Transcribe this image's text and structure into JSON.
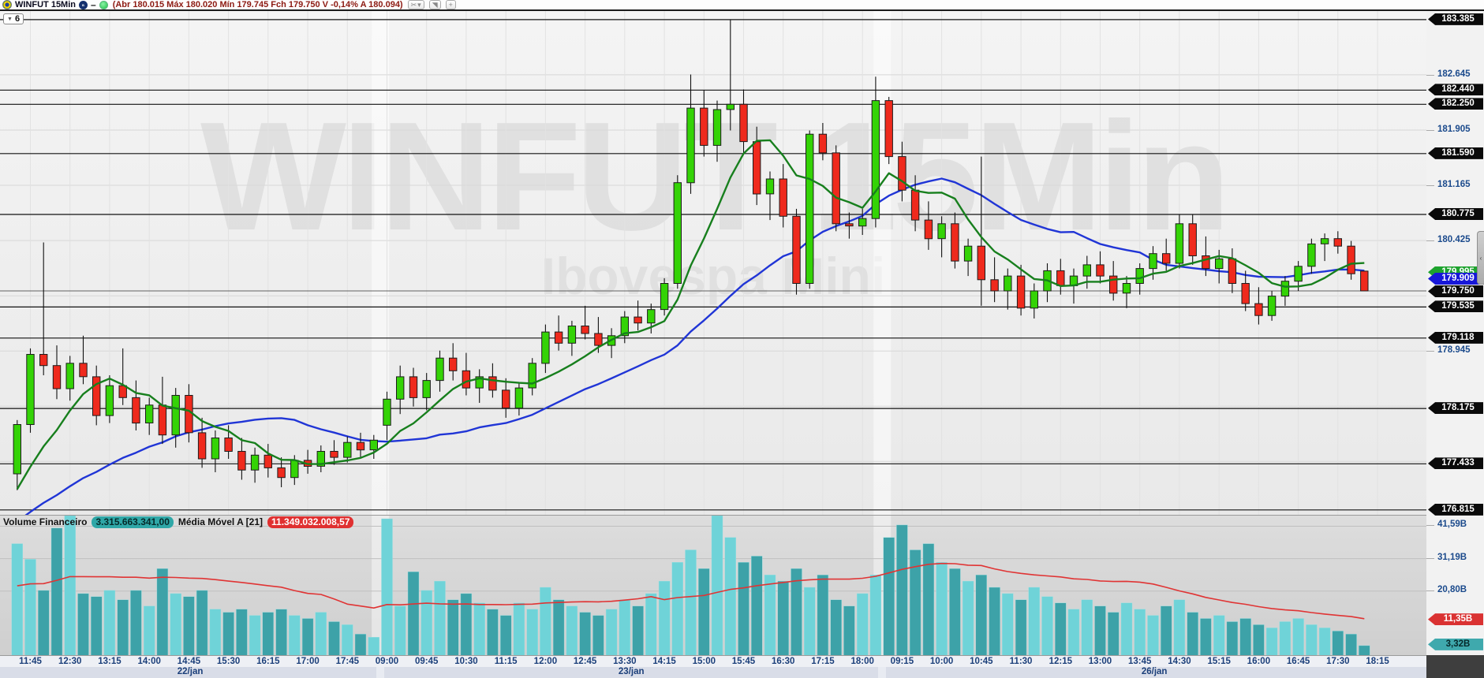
{
  "titlebar": {
    "symbol": "WINFUT 15Min",
    "ohlc": "(Abr 180.015 Máx 180.020 Mín 179.745 Fch 179.750 V -0,14% A 180.094)",
    "buttons": {
      "tools": "✂",
      "tools_caret": "▾",
      "cursor": "◥",
      "zoom_in": "+"
    },
    "minus": "–"
  },
  "tab_selector": {
    "caret": "▼",
    "label": "6"
  },
  "watermark": {
    "line1": "WINFUT 15Min",
    "line2": "Ibovespa Mini"
  },
  "volume_header": {
    "name": "Volume Financeiro",
    "value": "3.315.663.341,00",
    "ma_name": "Média Móvel A [21]",
    "ma_value": "11.349.032.008,57"
  },
  "panel_toggle": "‹",
  "price_axis": {
    "ticks": [
      {
        "label": "182.645",
        "price": 182.645
      },
      {
        "label": "181.905",
        "price": 181.905
      },
      {
        "label": "181.165",
        "price": 181.165
      },
      {
        "label": "180.425",
        "price": 180.425
      },
      {
        "label": "178.945",
        "price": 178.945
      }
    ],
    "levels": [
      {
        "label": "183.385",
        "price": 183.385
      },
      {
        "label": "182.440",
        "price": 182.44
      },
      {
        "label": "182.250",
        "price": 182.25
      },
      {
        "label": "181.590",
        "price": 181.59
      },
      {
        "label": "180.775",
        "price": 180.775
      },
      {
        "label": "179.535",
        "price": 179.535
      },
      {
        "label": "179.118",
        "price": 179.118
      },
      {
        "label": "178.175",
        "price": 178.175
      },
      {
        "label": "177.433",
        "price": 177.433
      },
      {
        "label": "176.815",
        "price": 176.815
      }
    ],
    "ma_fast_tag": {
      "label": "179.995",
      "price": 179.995
    },
    "ma_slow_tag": {
      "label": "179.909",
      "price": 179.909
    },
    "last_tag": {
      "label": "179.750",
      "price": 179.75
    }
  },
  "volume_axis": {
    "ticks": [
      {
        "label": "41,59B",
        "value": 41.59
      },
      {
        "label": "31,19B",
        "value": 31.19
      },
      {
        "label": "20,80B",
        "value": 20.8
      }
    ],
    "ma_tag": {
      "label": "11,35B",
      "value": 11.35
    },
    "last_tag": {
      "label": "3,32B",
      "value": 3.32
    }
  },
  "time_axis": {
    "ticks": [
      {
        "i": 1,
        "label": "11:45"
      },
      {
        "i": 4,
        "label": "12:30"
      },
      {
        "i": 7,
        "label": "13:15"
      },
      {
        "i": 10,
        "label": "14:00"
      },
      {
        "i": 13,
        "label": "14:45"
      },
      {
        "i": 16,
        "label": "15:30"
      },
      {
        "i": 19,
        "label": "16:15"
      },
      {
        "i": 22,
        "label": "17:00"
      },
      {
        "i": 25,
        "label": "17:45"
      },
      {
        "i": 28,
        "label": "09:00"
      },
      {
        "i": 31,
        "label": "09:45"
      },
      {
        "i": 34,
        "label": "10:30"
      },
      {
        "i": 37,
        "label": "11:15"
      },
      {
        "i": 40,
        "label": "12:00"
      },
      {
        "i": 43,
        "label": "12:45"
      },
      {
        "i": 46,
        "label": "13:30"
      },
      {
        "i": 49,
        "label": "14:15"
      },
      {
        "i": 52,
        "label": "15:00"
      },
      {
        "i": 55,
        "label": "15:45"
      },
      {
        "i": 58,
        "label": "16:30"
      },
      {
        "i": 61,
        "label": "17:15"
      },
      {
        "i": 64,
        "label": "18:00"
      },
      {
        "i": 67,
        "label": "09:15"
      },
      {
        "i": 70,
        "label": "10:00"
      },
      {
        "i": 73,
        "label": "10:45"
      },
      {
        "i": 76,
        "label": "11:30"
      },
      {
        "i": 79,
        "label": "12:15"
      },
      {
        "i": 82,
        "label": "13:00"
      },
      {
        "i": 85,
        "label": "13:45"
      },
      {
        "i": 88,
        "label": "14:30"
      },
      {
        "i": 91,
        "label": "15:15"
      },
      {
        "i": 94,
        "label": "16:00"
      },
      {
        "i": 97,
        "label": "16:45"
      },
      {
        "i": 100,
        "label": "17:30"
      },
      {
        "i": 103,
        "label": "18:15"
      }
    ],
    "dates": [
      {
        "label": "22/jan",
        "from": 0,
        "to": 27
      },
      {
        "label": "23/jan",
        "from": 28,
        "to": 65
      },
      {
        "label": "26/jan",
        "from": 66,
        "to": 103
      }
    ]
  },
  "chart_data": {
    "type": "candlestick+volume",
    "title": "WINFUT 15Min — Ibovespa Mini",
    "price_range": [
      176.75,
      183.5
    ],
    "grid_prices": [
      182.645,
      181.905,
      181.165,
      180.425,
      179.685,
      178.945,
      178.205,
      177.465
    ],
    "volume_max": 45,
    "slots": 108,
    "session_breaks": [
      27.5,
      65.5
    ],
    "ma_fast_period": 7,
    "ma_slow_period": 21,
    "vol_ma_period": 21,
    "ma_seed_closes": [
      176.1,
      176.15,
      176.2,
      176.25,
      176.3,
      176.3,
      176.35,
      176.4,
      176.45,
      176.5,
      176.55,
      176.6,
      176.65,
      176.7,
      176.75,
      176.8,
      176.85,
      176.9,
      176.95,
      177.05,
      177.15
    ],
    "vol_seed": [
      18,
      18,
      19,
      19,
      20,
      20,
      20,
      21,
      21,
      21,
      22,
      22,
      22,
      23,
      23,
      23,
      24,
      24,
      24,
      25,
      25
    ],
    "candles": [
      [
        177.3,
        178.02,
        177.08,
        177.96
      ],
      [
        177.96,
        178.98,
        177.85,
        178.9
      ],
      [
        178.9,
        180.4,
        178.62,
        178.75
      ],
      [
        178.75,
        179.02,
        178.3,
        178.44
      ],
      [
        178.44,
        178.88,
        178.28,
        178.78
      ],
      [
        178.78,
        179.15,
        178.5,
        178.6
      ],
      [
        178.6,
        178.75,
        177.95,
        178.08
      ],
      [
        178.08,
        178.62,
        177.98,
        178.48
      ],
      [
        178.48,
        178.98,
        178.22,
        178.32
      ],
      [
        178.32,
        178.55,
        177.88,
        177.98
      ],
      [
        177.98,
        178.32,
        177.82,
        178.22
      ],
      [
        178.22,
        178.6,
        177.7,
        177.82
      ],
      [
        177.82,
        178.45,
        177.65,
        178.35
      ],
      [
        178.35,
        178.5,
        177.72,
        177.85
      ],
      [
        177.85,
        178.05,
        177.38,
        177.5
      ],
      [
        177.5,
        177.88,
        177.32,
        177.78
      ],
      [
        177.78,
        177.95,
        177.5,
        177.6
      ],
      [
        177.6,
        177.78,
        177.22,
        177.35
      ],
      [
        177.35,
        177.65,
        177.18,
        177.55
      ],
      [
        177.55,
        177.7,
        177.25,
        177.38
      ],
      [
        177.38,
        177.52,
        177.12,
        177.25
      ],
      [
        177.25,
        177.55,
        177.15,
        177.48
      ],
      [
        177.48,
        177.62,
        177.3,
        177.4
      ],
      [
        177.4,
        177.68,
        177.32,
        177.6
      ],
      [
        177.6,
        177.75,
        177.42,
        177.52
      ],
      [
        177.52,
        177.8,
        177.45,
        177.72
      ],
      [
        177.72,
        177.85,
        177.52,
        177.62
      ],
      [
        177.62,
        177.82,
        177.5,
        177.75
      ],
      [
        177.95,
        178.4,
        177.75,
        178.3
      ],
      [
        178.3,
        178.75,
        178.1,
        178.6
      ],
      [
        178.6,
        178.72,
        178.2,
        178.32
      ],
      [
        178.32,
        178.65,
        178.15,
        178.55
      ],
      [
        178.55,
        178.95,
        178.4,
        178.85
      ],
      [
        178.85,
        179.05,
        178.55,
        178.68
      ],
      [
        178.68,
        178.92,
        178.35,
        178.45
      ],
      [
        178.45,
        178.7,
        178.25,
        178.6
      ],
      [
        178.6,
        178.78,
        178.32,
        178.42
      ],
      [
        178.42,
        178.58,
        178.05,
        178.18
      ],
      [
        178.18,
        178.52,
        178.08,
        178.45
      ],
      [
        178.45,
        178.85,
        178.35,
        178.78
      ],
      [
        178.78,
        179.3,
        178.65,
        179.2
      ],
      [
        179.2,
        179.42,
        178.95,
        179.05
      ],
      [
        179.05,
        179.35,
        178.88,
        179.28
      ],
      [
        179.28,
        179.55,
        179.1,
        179.18
      ],
      [
        179.18,
        179.4,
        178.92,
        179.02
      ],
      [
        179.02,
        179.25,
        178.85,
        179.15
      ],
      [
        179.15,
        179.48,
        179.05,
        179.4
      ],
      [
        179.4,
        179.62,
        179.22,
        179.32
      ],
      [
        179.32,
        179.58,
        179.18,
        179.5
      ],
      [
        179.5,
        179.92,
        179.42,
        179.85
      ],
      [
        179.85,
        181.3,
        179.78,
        181.2
      ],
      [
        181.2,
        182.65,
        181.05,
        182.2
      ],
      [
        182.2,
        182.44,
        181.55,
        181.7
      ],
      [
        181.7,
        182.3,
        181.48,
        182.18
      ],
      [
        182.18,
        183.385,
        181.9,
        182.25
      ],
      [
        182.25,
        182.45,
        181.6,
        181.75
      ],
      [
        181.75,
        181.95,
        180.9,
        181.05
      ],
      [
        181.05,
        181.35,
        180.7,
        181.25
      ],
      [
        181.25,
        181.45,
        180.6,
        180.75
      ],
      [
        180.75,
        180.85,
        179.7,
        179.85
      ],
      [
        179.85,
        181.9,
        179.78,
        181.85
      ],
      [
        181.85,
        182.0,
        181.5,
        181.6
      ],
      [
        181.6,
        181.7,
        180.55,
        180.65
      ],
      [
        180.65,
        180.8,
        180.45,
        180.62
      ],
      [
        180.62,
        180.85,
        180.5,
        180.72
      ],
      [
        180.72,
        182.62,
        180.6,
        182.3
      ],
      [
        182.3,
        182.35,
        181.45,
        181.55
      ],
      [
        181.55,
        181.75,
        180.95,
        181.1
      ],
      [
        181.1,
        181.3,
        180.55,
        180.7
      ],
      [
        180.7,
        180.95,
        180.3,
        180.45
      ],
      [
        180.45,
        180.75,
        180.2,
        180.65
      ],
      [
        180.65,
        180.8,
        180.05,
        180.15
      ],
      [
        180.15,
        180.45,
        179.95,
        180.35
      ],
      [
        180.35,
        181.55,
        179.55,
        179.9
      ],
      [
        179.9,
        180.2,
        179.6,
        179.75
      ],
      [
        179.75,
        180.05,
        179.5,
        179.95
      ],
      [
        179.95,
        180.1,
        179.42,
        179.52
      ],
      [
        179.52,
        179.85,
        179.38,
        179.75
      ],
      [
        179.75,
        180.12,
        179.6,
        180.02
      ],
      [
        180.02,
        180.18,
        179.7,
        179.82
      ],
      [
        179.82,
        180.05,
        179.58,
        179.95
      ],
      [
        179.95,
        180.22,
        179.78,
        180.1
      ],
      [
        180.1,
        180.28,
        179.85,
        179.95
      ],
      [
        179.95,
        180.15,
        179.62,
        179.72
      ],
      [
        179.72,
        179.95,
        179.52,
        179.85
      ],
      [
        179.85,
        180.12,
        179.7,
        180.05
      ],
      [
        180.05,
        180.35,
        179.9,
        180.25
      ],
      [
        180.25,
        180.45,
        180.02,
        180.12
      ],
      [
        180.12,
        180.78,
        180.05,
        180.65
      ],
      [
        180.65,
        180.78,
        180.1,
        180.22
      ],
      [
        180.22,
        180.48,
        179.95,
        180.05
      ],
      [
        180.05,
        180.3,
        179.85,
        180.18
      ],
      [
        180.18,
        180.32,
        179.72,
        179.85
      ],
      [
        179.85,
        180.02,
        179.48,
        179.58
      ],
      [
        179.58,
        179.8,
        179.3,
        179.42
      ],
      [
        179.42,
        179.75,
        179.35,
        179.68
      ],
      [
        179.68,
        179.95,
        179.55,
        179.88
      ],
      [
        179.88,
        180.15,
        179.75,
        180.08
      ],
      [
        180.08,
        180.45,
        179.98,
        180.38
      ],
      [
        180.38,
        180.52,
        180.15,
        180.45
      ],
      [
        180.45,
        180.55,
        180.25,
        180.35
      ],
      [
        180.35,
        180.42,
        179.9,
        179.98
      ],
      [
        180.015,
        180.02,
        179.745,
        179.75
      ]
    ],
    "volumes": [
      36,
      31,
      21,
      41,
      45,
      20,
      19,
      21,
      18,
      21,
      16,
      28,
      20,
      19,
      21,
      15,
      14,
      15,
      13,
      14,
      15,
      13,
      12,
      14,
      11,
      10,
      7,
      6,
      44,
      16,
      27,
      21,
      24,
      18,
      20,
      17,
      15,
      13,
      17,
      15,
      22,
      18,
      16,
      14,
      13,
      15,
      18,
      16,
      20,
      24,
      30,
      34,
      28,
      45,
      38,
      30,
      32,
      26,
      24,
      28,
      22,
      26,
      18,
      16,
      20,
      26,
      38,
      42,
      34,
      36,
      30,
      28,
      24,
      26,
      22,
      20,
      18,
      22,
      19,
      17,
      15,
      18,
      16,
      14,
      17,
      15,
      13,
      16,
      18,
      14,
      12,
      13,
      11,
      12,
      10,
      9,
      11,
      12,
      10,
      9,
      8,
      7,
      3.32
    ],
    "colors": {
      "bull": "#34d306",
      "bear": "#ef2a1d",
      "candle_stroke": "#1c1c1c",
      "ma_fast": "#177f1d",
      "ma_slow": "#2035d6",
      "vol_up": "#6fd3d8",
      "vol_down": "#3da2a8",
      "vol_ma": "#e03434",
      "level_line": "#121212",
      "grid_line": "#d7d7d7",
      "vgrid_line": "#e2e2e2",
      "tick_label": "#1b4a8c"
    }
  }
}
